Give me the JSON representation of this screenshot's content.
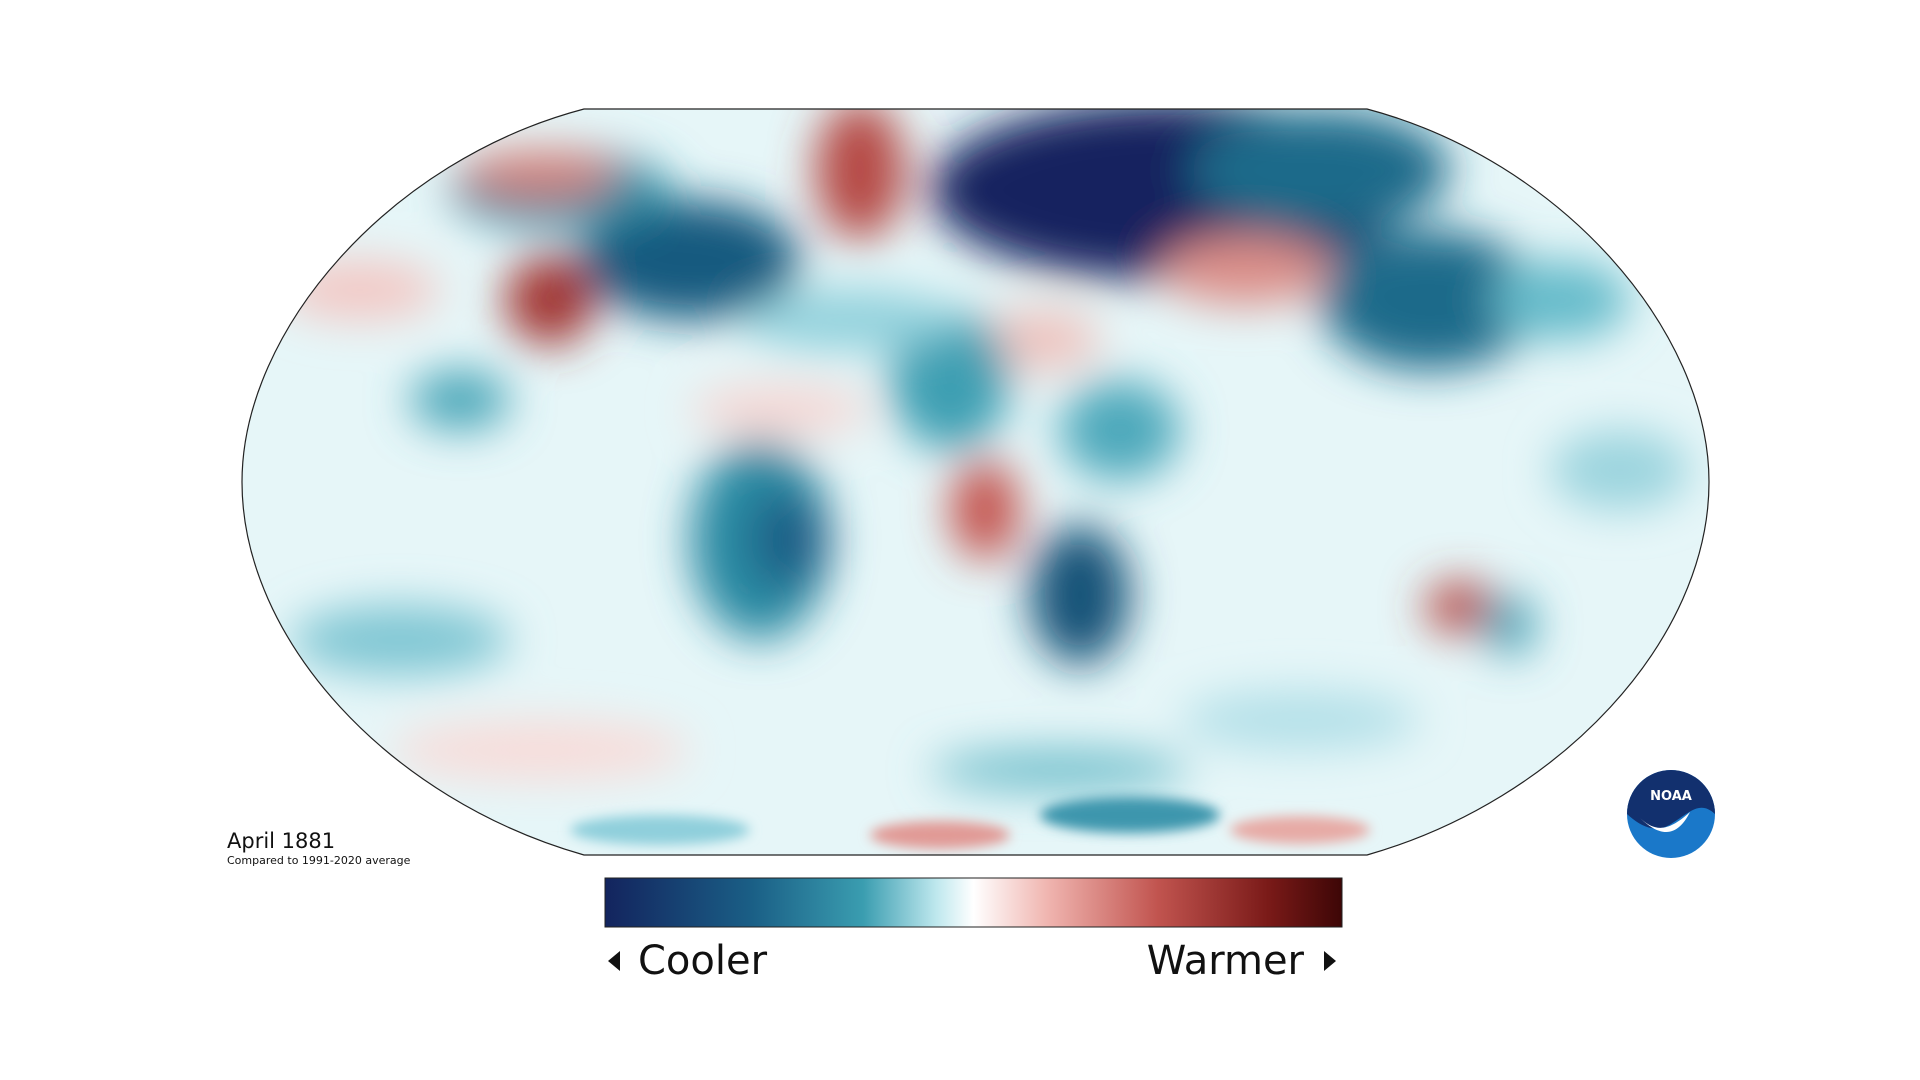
{
  "map": {
    "title": "April 1881",
    "subtitle": "Compared to 1991-2020 average"
  },
  "legend": {
    "low_label": "Cooler",
    "high_label": "Warmer"
  },
  "logo": {
    "text": "NOAA"
  }
}
